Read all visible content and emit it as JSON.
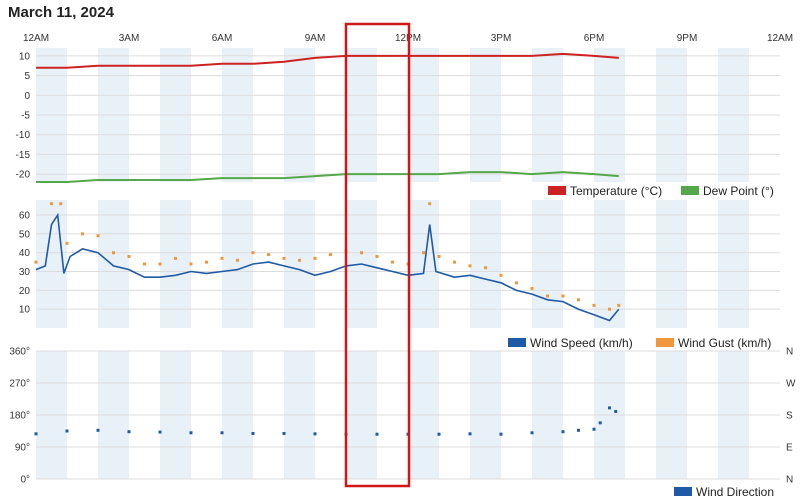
{
  "page": {
    "title": "March 11, 2024"
  },
  "colors": {
    "temperature": "#cc2222",
    "dew_point": "#55a84a",
    "wind_speed": "#1f5aa6",
    "wind_gust": "#f0963c",
    "wind_direction": "#1f5aa6",
    "band": "#e9f1f8",
    "grid": "#dcdcdc",
    "highlight": "#d01616"
  },
  "chart_data": [
    {
      "type": "line",
      "x_ticks": [
        "12AM",
        "3AM",
        "6AM",
        "9AM",
        "12PM",
        "3PM",
        "6PM",
        "9PM",
        "12AM"
      ],
      "x_range_hours": [
        0,
        24
      ],
      "y_ticks": [
        10,
        5,
        0,
        -5,
        -10,
        -15,
        -20
      ],
      "ylim": [
        -22,
        12
      ],
      "series": [
        {
          "name": "Temperature (°C)",
          "points": [
            [
              0,
              7
            ],
            [
              1,
              7
            ],
            [
              2,
              7.5
            ],
            [
              3,
              7.5
            ],
            [
              4,
              7.5
            ],
            [
              5,
              7.5
            ],
            [
              6,
              8
            ],
            [
              7,
              8
            ],
            [
              8,
              8.5
            ],
            [
              9,
              9.5
            ],
            [
              10,
              10
            ],
            [
              11,
              10
            ],
            [
              12,
              10
            ],
            [
              13,
              10
            ],
            [
              14,
              10
            ],
            [
              15,
              10
            ],
            [
              16,
              10
            ],
            [
              17,
              10.5
            ],
            [
              18,
              10
            ],
            [
              18.8,
              9.5
            ]
          ]
        },
        {
          "name": "Dew Point (°)",
          "points": [
            [
              0,
              -22
            ],
            [
              1,
              -22
            ],
            [
              2,
              -21.5
            ],
            [
              3,
              -21.5
            ],
            [
              4,
              -21.5
            ],
            [
              5,
              -21.5
            ],
            [
              6,
              -21
            ],
            [
              7,
              -21
            ],
            [
              8,
              -21
            ],
            [
              9,
              -20.5
            ],
            [
              10,
              -20
            ],
            [
              11,
              -20
            ],
            [
              12,
              -20
            ],
            [
              13,
              -20
            ],
            [
              14,
              -19.5
            ],
            [
              15,
              -19.5
            ],
            [
              16,
              -20
            ],
            [
              17,
              -19.5
            ],
            [
              18,
              -20
            ],
            [
              18.8,
              -20.5
            ]
          ]
        }
      ]
    },
    {
      "type": "line",
      "x_range_hours": [
        0,
        24
      ],
      "y_ticks": [
        60,
        50,
        40,
        30,
        20,
        10
      ],
      "ylim": [
        0,
        68
      ],
      "series": [
        {
          "name": "Wind Speed (km/h)",
          "points": [
            [
              0,
              31
            ],
            [
              0.3,
              33
            ],
            [
              0.5,
              55
            ],
            [
              0.7,
              60
            ],
            [
              0.9,
              29
            ],
            [
              1.1,
              38
            ],
            [
              1.5,
              42
            ],
            [
              2,
              40
            ],
            [
              2.5,
              33
            ],
            [
              3,
              31
            ],
            [
              3.5,
              27
            ],
            [
              4,
              27
            ],
            [
              4.5,
              28
            ],
            [
              5,
              30
            ],
            [
              5.5,
              29
            ],
            [
              6,
              30
            ],
            [
              6.5,
              31
            ],
            [
              7,
              34
            ],
            [
              7.5,
              35
            ],
            [
              8,
              33
            ],
            [
              8.5,
              31
            ],
            [
              9,
              28
            ],
            [
              9.5,
              30
            ],
            [
              10,
              33
            ],
            [
              10.5,
              34
            ],
            [
              11,
              32
            ],
            [
              11.5,
              30
            ],
            [
              12,
              28
            ],
            [
              12.5,
              29
            ],
            [
              12.7,
              55
            ],
            [
              12.9,
              30
            ],
            [
              13.5,
              27
            ],
            [
              14,
              28
            ],
            [
              14.5,
              26
            ],
            [
              15,
              24
            ],
            [
              15.5,
              20
            ],
            [
              16,
              18
            ],
            [
              16.5,
              15
            ],
            [
              17,
              14
            ],
            [
              17.5,
              10
            ],
            [
              18,
              7
            ],
            [
              18.5,
              4
            ],
            [
              18.8,
              10
            ]
          ]
        },
        {
          "name": "Wind Gust (km/h)",
          "points": [
            [
              0,
              35
            ],
            [
              0.5,
              66
            ],
            [
              0.8,
              66
            ],
            [
              1,
              45
            ],
            [
              1.5,
              50
            ],
            [
              2,
              49
            ],
            [
              2.5,
              40
            ],
            [
              3,
              38
            ],
            [
              3.5,
              34
            ],
            [
              4,
              34
            ],
            [
              4.5,
              37
            ],
            [
              5,
              34
            ],
            [
              5.5,
              35
            ],
            [
              6,
              37
            ],
            [
              6.5,
              36
            ],
            [
              7,
              40
            ],
            [
              7.5,
              39
            ],
            [
              8,
              37
            ],
            [
              8.5,
              36
            ],
            [
              9,
              37
            ],
            [
              9.5,
              39
            ],
            [
              10,
              41
            ],
            [
              10.5,
              40
            ],
            [
              11,
              38
            ],
            [
              11.5,
              35
            ],
            [
              12,
              34
            ],
            [
              12.5,
              40
            ],
            [
              12.7,
              66
            ],
            [
              13,
              38
            ],
            [
              13.5,
              35
            ],
            [
              14,
              33
            ],
            [
              14.5,
              32
            ],
            [
              15,
              28
            ],
            [
              15.5,
              24
            ],
            [
              16,
              21
            ],
            [
              16.5,
              17
            ],
            [
              17,
              17
            ],
            [
              17.5,
              15
            ],
            [
              18,
              12
            ],
            [
              18.5,
              10
            ],
            [
              18.8,
              12
            ]
          ]
        }
      ]
    },
    {
      "type": "scatter",
      "x_range_hours": [
        0,
        24
      ],
      "y_ticks": [
        "360°",
        "270°",
        "180°",
        "90°",
        "0°"
      ],
      "y_ticks_right": [
        "N",
        "W",
        "S",
        "E",
        "N"
      ],
      "ylim": [
        0,
        360
      ],
      "series": [
        {
          "name": "Wind Direction",
          "points": [
            [
              0,
              127
            ],
            [
              1,
              135
            ],
            [
              2,
              137
            ],
            [
              3,
              133
            ],
            [
              4,
              132
            ],
            [
              5,
              130
            ],
            [
              6,
              130
            ],
            [
              7,
              128
            ],
            [
              8,
              128
            ],
            [
              9,
              127
            ],
            [
              10,
              126
            ],
            [
              11,
              126
            ],
            [
              12,
              126
            ],
            [
              13,
              126
            ],
            [
              14,
              127
            ],
            [
              15,
              126
            ],
            [
              16,
              130
            ],
            [
              17,
              133
            ],
            [
              17.5,
              137
            ],
            [
              18,
              140
            ],
            [
              18.2,
              158
            ],
            [
              18.5,
              200
            ],
            [
              18.7,
              190
            ]
          ]
        }
      ]
    }
  ]
}
